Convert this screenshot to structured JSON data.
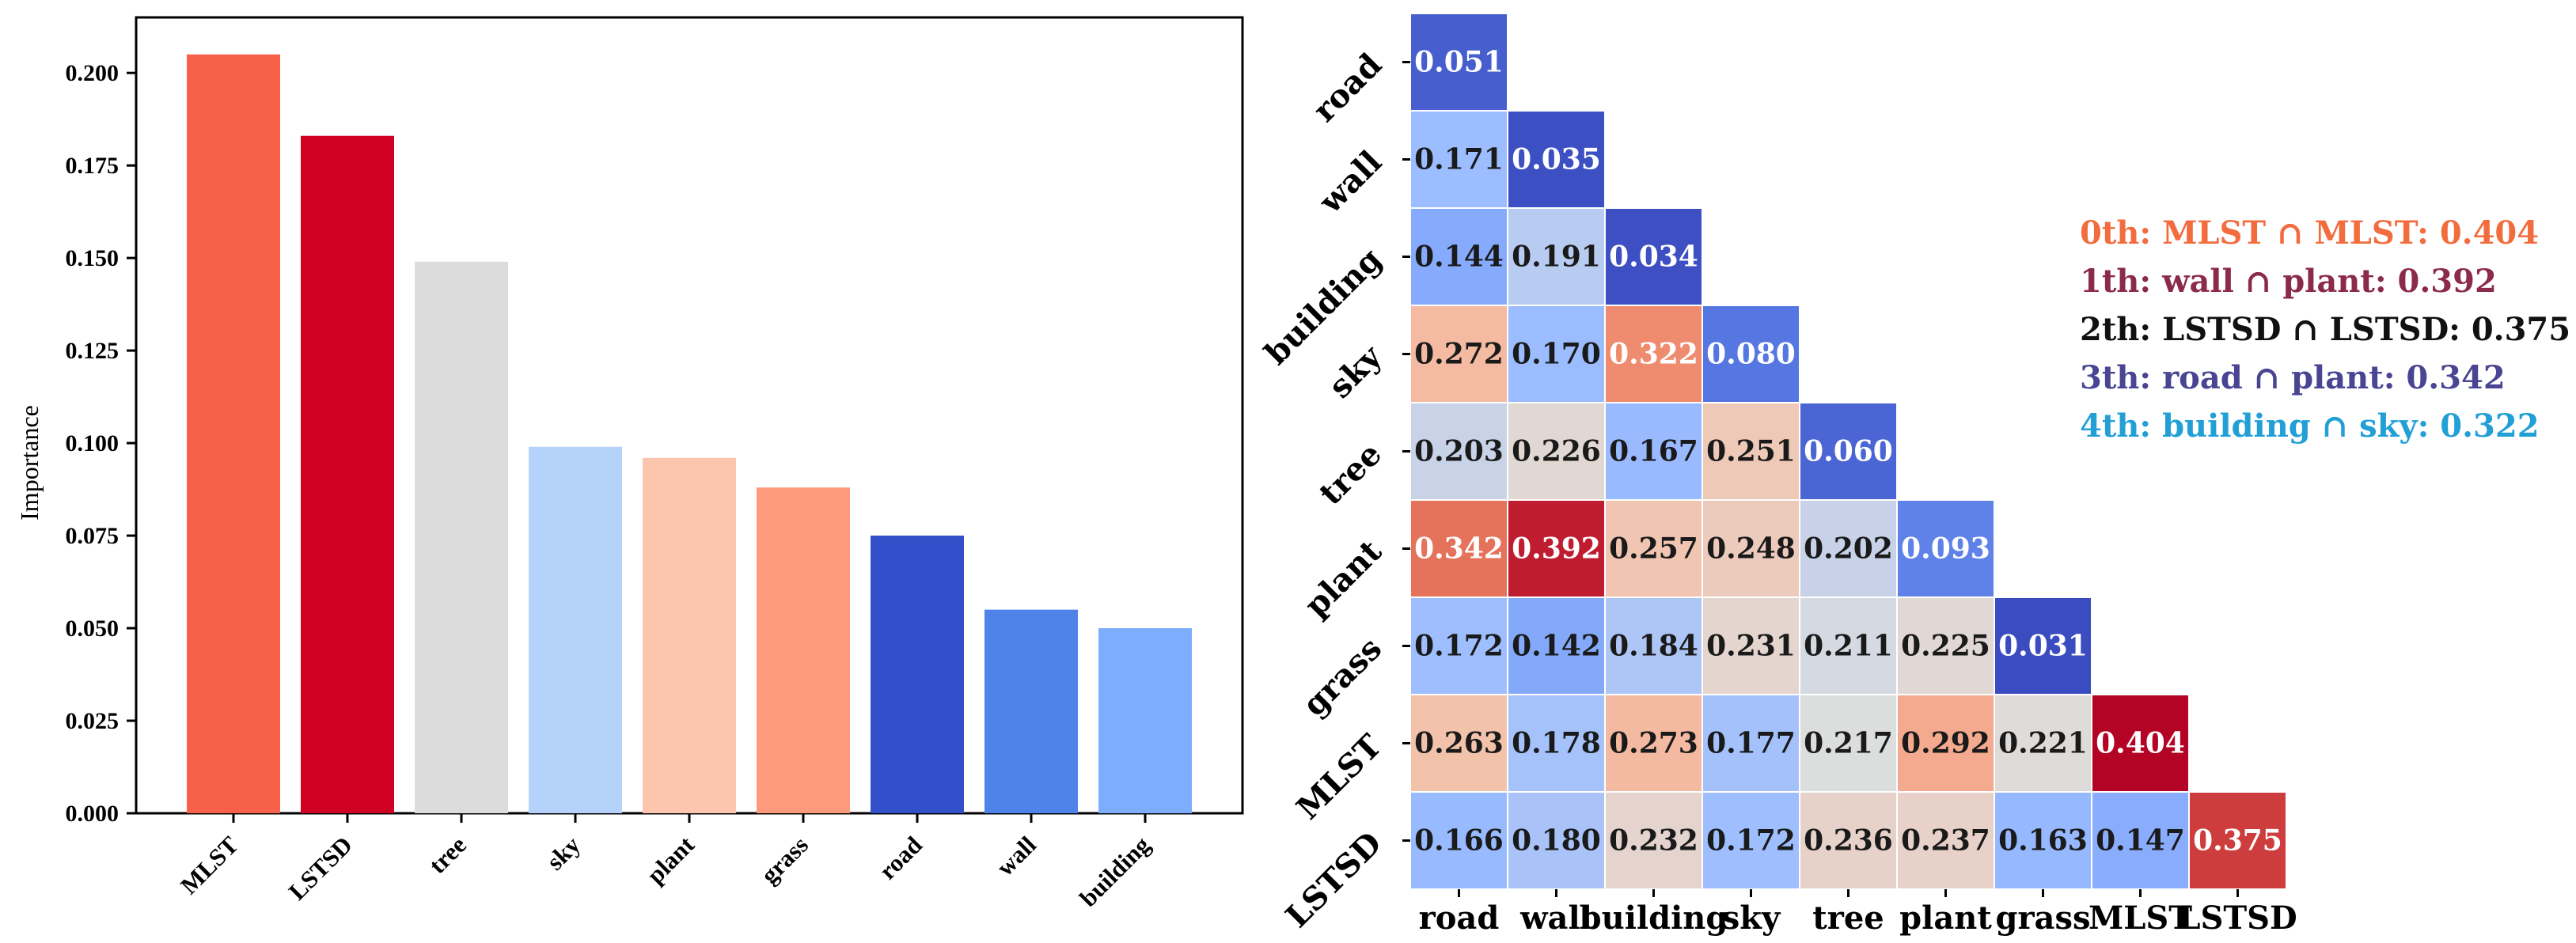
{
  "chart_data": [
    {
      "type": "bar",
      "title": "",
      "xlabel": "",
      "ylabel": "Importance",
      "ylim": [
        0,
        0.215
      ],
      "yticks": [
        "0.000",
        "0.025",
        "0.050",
        "0.075",
        "0.100",
        "0.125",
        "0.150",
        "0.175",
        "0.200"
      ],
      "categories": [
        "MLST",
        "LSTSD",
        "tree",
        "sky",
        "plant",
        "grass",
        "road",
        "wall",
        "building"
      ],
      "values": [
        0.205,
        0.183,
        0.149,
        0.099,
        0.096,
        0.088,
        0.075,
        0.055,
        0.05
      ],
      "colors": [
        "#f7614a",
        "#d00022",
        "#dcdcdc",
        "#b4d2fa",
        "#fcc5ad",
        "#fd9a7c",
        "#324ec8",
        "#4f83ea",
        "#7daefd"
      ]
    },
    {
      "type": "heatmap",
      "title": "",
      "labels": [
        "road",
        "wall",
        "building",
        "sky",
        "tree",
        "plant",
        "grass",
        "MLST",
        "LSTSD"
      ],
      "matrix": [
        [
          0.051
        ],
        [
          0.171,
          0.035
        ],
        [
          0.144,
          0.191,
          0.034
        ],
        [
          0.272,
          0.17,
          0.322,
          0.08
        ],
        [
          0.203,
          0.226,
          0.167,
          0.251,
          0.06
        ],
        [
          0.342,
          0.392,
          0.257,
          0.248,
          0.202,
          0.093
        ],
        [
          0.172,
          0.142,
          0.184,
          0.231,
          0.211,
          0.225,
          0.031
        ],
        [
          0.263,
          0.178,
          0.273,
          0.177,
          0.217,
          0.292,
          0.221,
          0.404
        ],
        [
          0.166,
          0.18,
          0.232,
          0.172,
          0.236,
          0.237,
          0.163,
          0.147,
          0.375
        ]
      ],
      "colormap": "coolwarm",
      "vmin": 0.031,
      "vmax": 0.404,
      "annotations": [
        {
          "text": "0th: MLST ∩ MLST: 0.404",
          "color": "#f26c3e"
        },
        {
          "text": "1th: wall ∩ plant: 0.392",
          "color": "#8b2a4c"
        },
        {
          "text": "2th: LSTSD ∩ LSTSD: 0.375",
          "color": "#111111"
        },
        {
          "text": "3th: road ∩ plant: 0.342",
          "color": "#4a4593"
        },
        {
          "text": "4th: building ∩ sky: 0.322",
          "color": "#22a0d6"
        }
      ]
    }
  ]
}
